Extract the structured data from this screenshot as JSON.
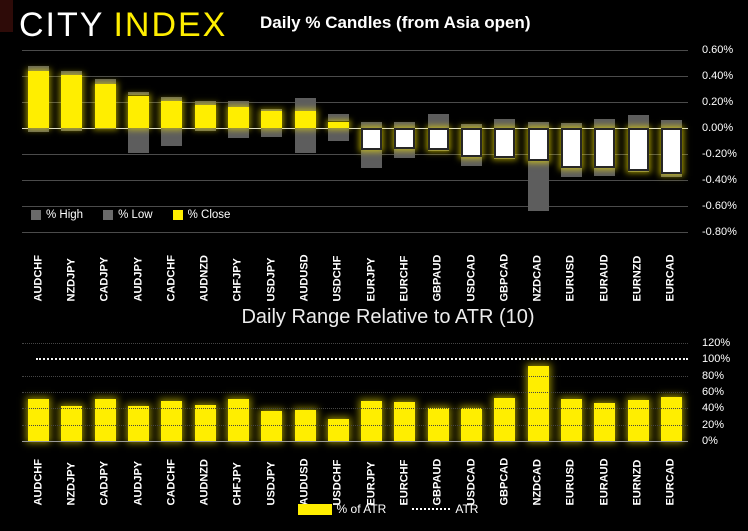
{
  "brand": {
    "city": "CITY",
    "index": "INDEX"
  },
  "colors": {
    "background": "#000000",
    "accent_yellow": "#ffee00",
    "candle_wick_gray": "#5d5d5d",
    "negative_body_white": "#ffffff",
    "text_white": "#ffffff"
  },
  "chart_data": [
    {
      "type": "bar",
      "subtype": "candlestick-emulated-stacked-bars",
      "title": "Daily % Candles (from Asia open)",
      "categories": [
        "AUDCHF",
        "NZDJPY",
        "CADJPY",
        "AUDJPY",
        "CADCHF",
        "AUDNZD",
        "CHFJPY",
        "USDJPY",
        "AUDUSD",
        "USDCHF",
        "EURJPY",
        "EURCHF",
        "GBPAUD",
        "USDCAD",
        "GBPCAD",
        "NZDCAD",
        "EURUSD",
        "EURAUD",
        "EURNZD",
        "EURCAD"
      ],
      "series": [
        {
          "name": "% High",
          "values": [
            0.48,
            0.44,
            0.38,
            0.28,
            0.24,
            0.21,
            0.21,
            0.15,
            0.23,
            0.11,
            0.05,
            0.05,
            0.11,
            0.03,
            0.07,
            0.05,
            0.04,
            0.07,
            0.1,
            0.06
          ]
        },
        {
          "name": "% Low",
          "values": [
            -0.03,
            -0.02,
            -0.01,
            -0.19,
            -0.14,
            -0.02,
            -0.08,
            -0.07,
            -0.19,
            -0.1,
            -0.31,
            -0.23,
            -0.18,
            -0.29,
            -0.24,
            -0.64,
            -0.38,
            -0.37,
            -0.34,
            -0.38
          ]
        },
        {
          "name": "% Close",
          "values": [
            0.44,
            0.41,
            0.34,
            0.25,
            0.21,
            0.18,
            0.16,
            0.13,
            0.13,
            0.05,
            -0.17,
            -0.16,
            -0.17,
            -0.22,
            -0.23,
            -0.25,
            -0.31,
            -0.31,
            -0.33,
            -0.35
          ]
        }
      ],
      "ylim": [
        -0.8,
        0.6
      ],
      "ytick_labels": [
        "0.60%",
        "0.40%",
        "0.20%",
        "0.00%",
        "-0.20%",
        "-0.40%",
        "-0.60%",
        "-0.80%"
      ],
      "axis_side": "right",
      "grid": true,
      "legend_position": "bottom-left"
    },
    {
      "type": "bar",
      "title": "Daily Range Relative to ATR (10)",
      "categories": [
        "AUDCHF",
        "NZDJPY",
        "CADJPY",
        "AUDJPY",
        "CADCHF",
        "AUDNZD",
        "CHFJPY",
        "USDJPY",
        "AUDUSD",
        "USDCHF",
        "EURJPY",
        "EURCHF",
        "GBPAUD",
        "USDCAD",
        "GBPCAD",
        "NZDCAD",
        "EURUSD",
        "EURAUD",
        "EURNZD",
        "EURCAD"
      ],
      "series": [
        {
          "name": "% of ATR",
          "values": [
            51,
            43,
            52,
            43,
            49,
            44,
            52,
            37,
            38,
            27,
            49,
            48,
            41,
            41,
            53,
            92,
            51,
            47,
            50,
            54
          ]
        }
      ],
      "atr_label": "ATR",
      "atr_line_value": 100,
      "ylim": [
        0,
        120
      ],
      "ytick_labels": [
        "120%",
        "100%",
        "80%",
        "60%",
        "40%",
        "20%",
        "0%"
      ],
      "axis_side": "right",
      "grid": true,
      "legend_position": "bottom-center"
    }
  ]
}
